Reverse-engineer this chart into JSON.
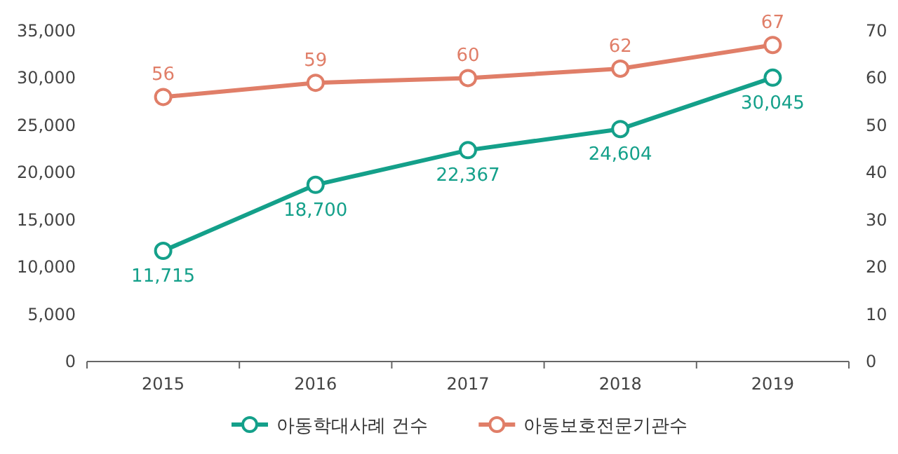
{
  "chart_data": {
    "type": "line",
    "categories": [
      "2015",
      "2016",
      "2017",
      "2018",
      "2019"
    ],
    "series": [
      {
        "name": "아동학대사례 건수",
        "color": "#14a08a",
        "values": [
          11715,
          18700,
          22367,
          24604,
          30045
        ],
        "value_labels": [
          "11,715",
          "18,700",
          "22,367",
          "24,604",
          "30,045"
        ]
      },
      {
        "name": "아동보호전문기관수",
        "color": "#e07e68",
        "values": [
          56,
          59,
          60,
          62,
          67
        ],
        "axis": "y2"
      }
    ],
    "ylim": [
      0,
      35000
    ],
    "yticks": [
      {
        "value": 0,
        "label": "0"
      },
      {
        "value": 5000,
        "label": "5,000"
      },
      {
        "value": 10000,
        "label": "10,000"
      },
      {
        "value": 15000,
        "label": "15,000"
      },
      {
        "value": 20000,
        "label": "20,000"
      },
      {
        "value": 25000,
        "label": "25,000"
      },
      {
        "value": 30000,
        "label": "30,000"
      },
      {
        "value": 35000,
        "label": "35,000"
      }
    ],
    "y2lim": [
      0,
      70
    ],
    "y2ticks": [
      0,
      10,
      20,
      30,
      40,
      50,
      60,
      70
    ],
    "marker": "circle",
    "legend": "bottom",
    "grid": false,
    "data_labels": true
  }
}
